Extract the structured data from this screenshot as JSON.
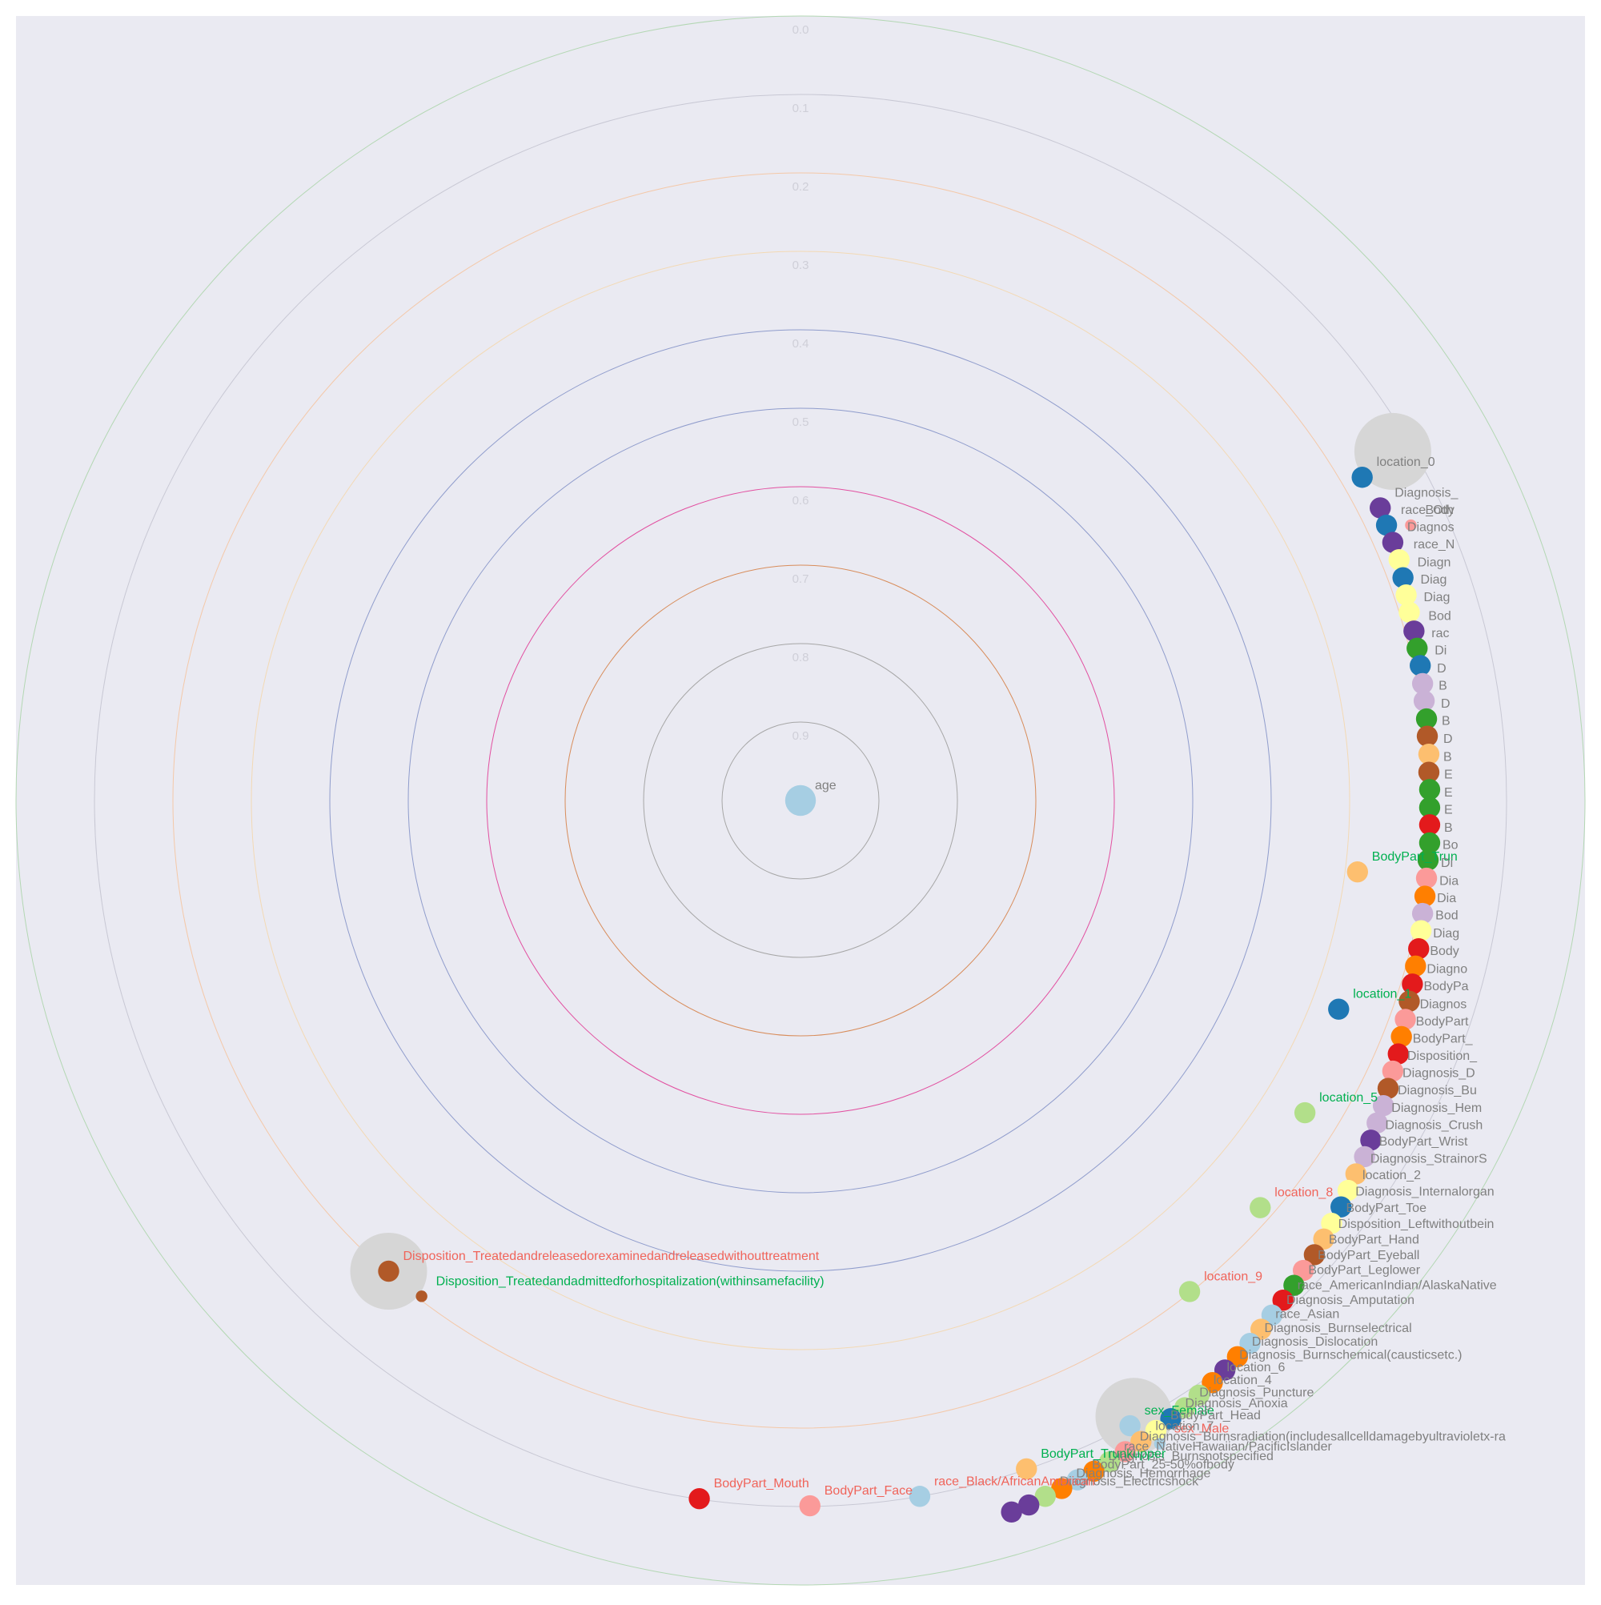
{
  "chart_data": {
    "type": "scatter",
    "subtype": "radial-correlation",
    "title": "",
    "radial_axis": {
      "range": [
        0,
        1
      ],
      "ticks": [
        "0.0",
        "0.1",
        "0.2",
        "0.3",
        "0.4",
        "0.5",
        "0.6",
        "0.7",
        "0.8",
        "0.9"
      ]
    },
    "grid": true,
    "legend": "none",
    "colors": {
      "background": "#eaeaf2",
      "tick_text": "#cfcfd8",
      "label_default": "#808080",
      "label_green": "#00b050",
      "label_red": "#f0645a",
      "cluster": "#d6d6d6",
      "rings": [
        "#a6a6a6",
        "#a6a6a6",
        "#d88c5a",
        "#e24fa0",
        "#8f9ccc",
        "#8f9ccc",
        "#f3d9b4",
        "#f4c8a8",
        "#c8c8d4",
        "#b3d7b3"
      ]
    },
    "clusters": [
      {
        "x": 0.755,
        "y": 0.445,
        "size": 0.1
      },
      {
        "x": -0.525,
        "y": -0.6,
        "size": 0.1
      },
      {
        "x": 0.425,
        "y": -0.785,
        "size": 0.1
      }
    ],
    "points": [
      {
        "label": "age",
        "label_color": "gray",
        "color": "#a6cee3",
        "x": 0.0,
        "y": 0.0,
        "size": 1.6
      },
      {
        "label": "location_0",
        "label_color": "gray",
        "color": "#1f78b4",
        "x": 0.716,
        "y": 0.412,
        "size": 1.1
      },
      {
        "label": "Diagnosis_",
        "label_color": "gray",
        "color": "#6a3d9a",
        "x": 0.739,
        "y": 0.373,
        "size": 1.1
      },
      {
        "label": "race_Oth",
        "label_color": "gray",
        "color": "#1f78b4",
        "x": 0.747,
        "y": 0.351,
        "size": 1.1
      },
      {
        "label": "Body",
        "label_color": "gray",
        "color": "#fb9a99",
        "x": 0.778,
        "y": 0.351,
        "size": 0.6
      },
      {
        "label": "Diagnos",
        "label_color": "gray",
        "color": "#6a3d9a",
        "x": 0.755,
        "y": 0.329,
        "size": 1.1
      },
      {
        "label": "race_N",
        "label_color": "gray",
        "color": "#ffff99",
        "x": 0.763,
        "y": 0.307,
        "size": 1.1
      },
      {
        "label": "Diagn",
        "label_color": "gray",
        "color": "#1f78b4",
        "x": 0.768,
        "y": 0.284,
        "size": 1.1
      },
      {
        "label": "Diag",
        "label_color": "gray",
        "color": "#ffff99",
        "x": 0.772,
        "y": 0.262,
        "size": 1.1
      },
      {
        "label": "Diag",
        "label_color": "gray",
        "color": "#ffff99",
        "x": 0.776,
        "y": 0.24,
        "size": 1.1
      },
      {
        "label": "Bod",
        "label_color": "gray",
        "color": "#6a3d9a",
        "x": 0.782,
        "y": 0.216,
        "size": 1.1
      },
      {
        "label": "rac",
        "label_color": "gray",
        "color": "#33a02c",
        "x": 0.786,
        "y": 0.194,
        "size": 1.1
      },
      {
        "label": "Di",
        "label_color": "gray",
        "color": "#1f78b4",
        "x": 0.79,
        "y": 0.172,
        "size": 1.1
      },
      {
        "label": "D",
        "label_color": "gray",
        "color": "#cab2d6",
        "x": 0.793,
        "y": 0.149,
        "size": 1.1
      },
      {
        "label": "B",
        "label_color": "gray",
        "color": "#cab2d6",
        "x": 0.795,
        "y": 0.127,
        "size": 1.1
      },
      {
        "label": "D",
        "label_color": "gray",
        "color": "#33a02c",
        "x": 0.798,
        "y": 0.104,
        "size": 1.1
      },
      {
        "label": "B",
        "label_color": "gray",
        "color": "#b15928",
        "x": 0.799,
        "y": 0.082,
        "size": 1.1
      },
      {
        "label": "D",
        "label_color": "gray",
        "color": "#fdbf6f",
        "x": 0.801,
        "y": 0.059,
        "size": 1.1
      },
      {
        "label": "B",
        "label_color": "gray",
        "color": "#b15928",
        "x": 0.801,
        "y": 0.036,
        "size": 1.1
      },
      {
        "label": "E",
        "label_color": "gray",
        "color": "#33a02c",
        "x": 0.802,
        "y": 0.014,
        "size": 1.1
      },
      {
        "label": "E",
        "label_color": "gray",
        "color": "#33a02c",
        "x": 0.802,
        "y": -0.009,
        "size": 1.1
      },
      {
        "label": "E",
        "label_color": "gray",
        "color": "#e31a1c",
        "x": 0.802,
        "y": -0.031,
        "size": 1.1
      },
      {
        "label": "B",
        "label_color": "gray",
        "color": "#33a02c",
        "x": 0.802,
        "y": -0.054,
        "size": 1.1
      },
      {
        "label": "Bo",
        "label_color": "gray",
        "color": "#33a02c",
        "x": 0.8,
        "y": -0.076,
        "size": 1.1
      },
      {
        "label": "BodyPart_Trun",
        "label_color": "green",
        "color": "#fdbf6f",
        "x": 0.71,
        "y": -0.091,
        "size": 1.1
      },
      {
        "label": "Di",
        "label_color": "gray",
        "color": "#fb9a99",
        "x": 0.798,
        "y": -0.099,
        "size": 1.1
      },
      {
        "label": "Dia",
        "label_color": "gray",
        "color": "#ff7f00",
        "x": 0.796,
        "y": -0.122,
        "size": 1.1
      },
      {
        "label": "Dia",
        "label_color": "gray",
        "color": "#cab2d6",
        "x": 0.793,
        "y": -0.144,
        "size": 1.1
      },
      {
        "label": "Bod",
        "label_color": "gray",
        "color": "#ffff99",
        "x": 0.791,
        "y": -0.166,
        "size": 1.1
      },
      {
        "label": "Diag",
        "label_color": "gray",
        "color": "#e31a1c",
        "x": 0.788,
        "y": -0.189,
        "size": 1.1
      },
      {
        "label": "Body",
        "label_color": "gray",
        "color": "#ff7f00",
        "x": 0.784,
        "y": -0.211,
        "size": 1.1
      },
      {
        "label": "location_1",
        "label_color": "green",
        "color": "#1f78b4",
        "x": 0.686,
        "y": -0.266,
        "size": 1.1
      },
      {
        "label": "Diagno",
        "label_color": "gray",
        "color": "#e31a1c",
        "x": 0.78,
        "y": -0.234,
        "size": 1.1
      },
      {
        "label": "BodyPa",
        "label_color": "gray",
        "color": "#b15928",
        "x": 0.776,
        "y": -0.256,
        "size": 1.1
      },
      {
        "label": "Diagnos",
        "label_color": "gray",
        "color": "#fb9a99",
        "x": 0.771,
        "y": -0.279,
        "size": 1.1
      },
      {
        "label": "BodyPart",
        "label_color": "gray",
        "color": "#ff7f00",
        "x": 0.766,
        "y": -0.301,
        "size": 1.1
      },
      {
        "label": "BodyPart_",
        "label_color": "gray",
        "color": "#e31a1c",
        "x": 0.762,
        "y": -0.323,
        "size": 1.1
      },
      {
        "label": "Disposition_",
        "label_color": "gray",
        "color": "#fb9a99",
        "x": 0.755,
        "y": -0.345,
        "size": 1.1
      },
      {
        "label": "location_5",
        "label_color": "green",
        "color": "#b2df8a",
        "x": 0.643,
        "y": -0.398,
        "size": 1.1
      },
      {
        "label": "Diagnosis_D",
        "label_color": "gray",
        "color": "#b15928",
        "x": 0.749,
        "y": -0.367,
        "size": 1.1
      },
      {
        "label": "Diagnosis_Bu",
        "label_color": "gray",
        "color": "#cab2d6",
        "x": 0.743,
        "y": -0.389,
        "size": 1.1
      },
      {
        "label": "Diagnosis_Hem",
        "label_color": "gray",
        "color": "#cab2d6",
        "x": 0.735,
        "y": -0.411,
        "size": 1.1
      },
      {
        "label": "Diagnosis_Crush",
        "label_color": "gray",
        "color": "#6a3d9a",
        "x": 0.727,
        "y": -0.433,
        "size": 1.1
      },
      {
        "label": "BodyPart_Wrist",
        "label_color": "gray",
        "color": "#cab2d6",
        "x": 0.719,
        "y": -0.454,
        "size": 1.1
      },
      {
        "label": "location_8",
        "label_color": "red",
        "color": "#b2df8a",
        "x": 0.586,
        "y": -0.519,
        "size": 1.1
      },
      {
        "label": "Diagnosis_StrainorS",
        "label_color": "gray",
        "color": "#fdbf6f",
        "x": 0.708,
        "y": -0.476,
        "size": 1.1
      },
      {
        "label": "location_2",
        "label_color": "gray",
        "color": "#ffff99",
        "x": 0.698,
        "y": -0.497,
        "size": 1.1
      },
      {
        "label": "Diagnosis_Internalorgan",
        "label_color": "gray",
        "color": "#1f78b4",
        "x": 0.689,
        "y": -0.518,
        "size": 1.1
      },
      {
        "label": "BodyPart_Toe",
        "label_color": "gray",
        "color": "#ffff99",
        "x": 0.677,
        "y": -0.539,
        "size": 1.1
      },
      {
        "label": "Disposition_Leftwithoutbein",
        "label_color": "gray",
        "color": "#fdbf6f",
        "x": 0.667,
        "y": -0.559,
        "size": 1.1
      },
      {
        "label": "BodyPart_Hand",
        "label_color": "gray",
        "color": "#b15928",
        "x": 0.655,
        "y": -0.579,
        "size": 1.1
      },
      {
        "label": "location_9",
        "label_color": "red",
        "color": "#b2df8a",
        "x": 0.496,
        "y": -0.626,
        "size": 1.1
      },
      {
        "label": "BodyPart_Eyeball",
        "label_color": "gray",
        "color": "#fb9a99",
        "x": 0.641,
        "y": -0.599,
        "size": 1.1
      },
      {
        "label": "BodyPart_Leglower",
        "label_color": "gray",
        "color": "#33a02c",
        "x": 0.629,
        "y": -0.618,
        "size": 1.1
      },
      {
        "label": "race_AmericanIndian/AlaskaNative",
        "label_color": "gray",
        "color": "#e31a1c",
        "x": 0.615,
        "y": -0.637,
        "size": 1.1
      },
      {
        "label": "Diagnosis_Amputation",
        "label_color": "gray",
        "color": "#a6cee3",
        "x": 0.601,
        "y": -0.656,
        "size": 1.1
      },
      {
        "label": "race_Asian",
        "label_color": "gray",
        "color": "#fdbf6f",
        "x": 0.587,
        "y": -0.674,
        "size": 1.1
      },
      {
        "label": "Diagnosis_Burnselectrical",
        "label_color": "gray",
        "color": "#a6cee3",
        "x": 0.573,
        "y": -0.692,
        "size": 1.1
      },
      {
        "label": "Diagnosis_Dislocation",
        "label_color": "gray",
        "color": "#ff7f00",
        "x": 0.557,
        "y": -0.709,
        "size": 1.1
      },
      {
        "label": "Diagnosis_Burnschemical(causticsetc.)",
        "label_color": "gray",
        "color": "#6a3d9a",
        "x": 0.541,
        "y": -0.726,
        "size": 1.1
      },
      {
        "label": "sex_Female",
        "label_color": "green",
        "color": "#a6cee3",
        "x": 0.42,
        "y": -0.797,
        "size": 1.1
      },
      {
        "label": "location_6",
        "label_color": "gray",
        "color": "#ff7f00",
        "x": 0.525,
        "y": -0.742,
        "size": 1.1
      },
      {
        "label": "location_4",
        "label_color": "gray",
        "color": "#b2df8a",
        "x": 0.508,
        "y": -0.758,
        "size": 1.1
      },
      {
        "label": "Diagnosis_Puncture",
        "label_color": "gray",
        "color": "#b2df8a",
        "x": 0.49,
        "y": -0.774,
        "size": 1.1
      },
      {
        "label": "Diagnosis_Anoxia",
        "label_color": "gray",
        "color": "#1f78b4",
        "x": 0.472,
        "y": -0.788,
        "size": 1.1
      },
      {
        "label": "BodyPart_Head",
        "label_color": "gray",
        "color": "#ffff99",
        "x": 0.453,
        "y": -0.803,
        "size": 1.1
      },
      {
        "label": "sex_Male",
        "label_color": "red",
        "color": "#a6cee3",
        "x": 0.458,
        "y": -0.82,
        "size": 0.6
      },
      {
        "label": "location_7",
        "label_color": "gray",
        "color": "#fdbf6f",
        "x": 0.434,
        "y": -0.817,
        "size": 1.1
      },
      {
        "label": "Diagnosis_Burnsradiation(includesallcelldamagebyultravioletx-ra",
        "label_color": "gray",
        "color": "#fb9a99",
        "x": 0.414,
        "y": -0.83,
        "size": 1.1
      },
      {
        "label": "race_NativeHawaiian/PacificIslander",
        "label_color": "gray",
        "color": "#b2df8a",
        "x": 0.394,
        "y": -0.843,
        "size": 1.1
      },
      {
        "label": "Diagnosis_Burnsnotspecified",
        "label_color": "gray",
        "color": "#ff7f00",
        "x": 0.374,
        "y": -0.855,
        "size": 1.1
      },
      {
        "label": "BodyPart_25-50%ofbody",
        "label_color": "gray",
        "color": "#a6cee3",
        "x": 0.353,
        "y": -0.866,
        "size": 1.1
      },
      {
        "label": "Diagnosis_Hemorrhage",
        "label_color": "gray",
        "color": "#ff7f00",
        "x": 0.333,
        "y": -0.877,
        "size": 1.1
      },
      {
        "label": "Diagnosis_Electricshock",
        "label_color": "gray",
        "color": "#b2df8a",
        "x": 0.312,
        "y": -0.887,
        "size": 1.1
      },
      {
        "label": "",
        "label_color": "gray",
        "color": "#6a3d9a",
        "x": 0.291,
        "y": -0.898,
        "size": 1.1
      },
      {
        "label": "",
        "label_color": "gray",
        "color": "#6a3d9a",
        "x": 0.269,
        "y": -0.907,
        "size": 1.1
      },
      {
        "label": "BodyPart_Trunkupper",
        "label_color": "green",
        "color": "#fdbf6f",
        "x": 0.288,
        "y": -0.852,
        "size": 1.1
      },
      {
        "label": "race_Black/AfricanAmerican",
        "label_color": "red",
        "color": "#a6cee3",
        "x": 0.152,
        "y": -0.887,
        "size": 1.1
      },
      {
        "label": "BodyPart_Face",
        "label_color": "red",
        "color": "#fb9a99",
        "x": 0.012,
        "y": -0.899,
        "size": 1.1
      },
      {
        "label": "BodyPart_Mouth",
        "label_color": "red",
        "color": "#e31a1c",
        "x": -0.129,
        "y": -0.89,
        "size": 1.1
      },
      {
        "label": "Disposition_Treatedandreleasedorexaminedandreleasedwithouttreatment",
        "label_color": "red",
        "color": "#b15928",
        "x": -0.525,
        "y": -0.6,
        "size": 1.1
      },
      {
        "label": "Disposition_Treatedandadmittedforhospitalization(withinsamefacility)",
        "label_color": "green",
        "color": "#b15928",
        "x": -0.483,
        "y": -0.632,
        "size": 0.6
      }
    ]
  }
}
